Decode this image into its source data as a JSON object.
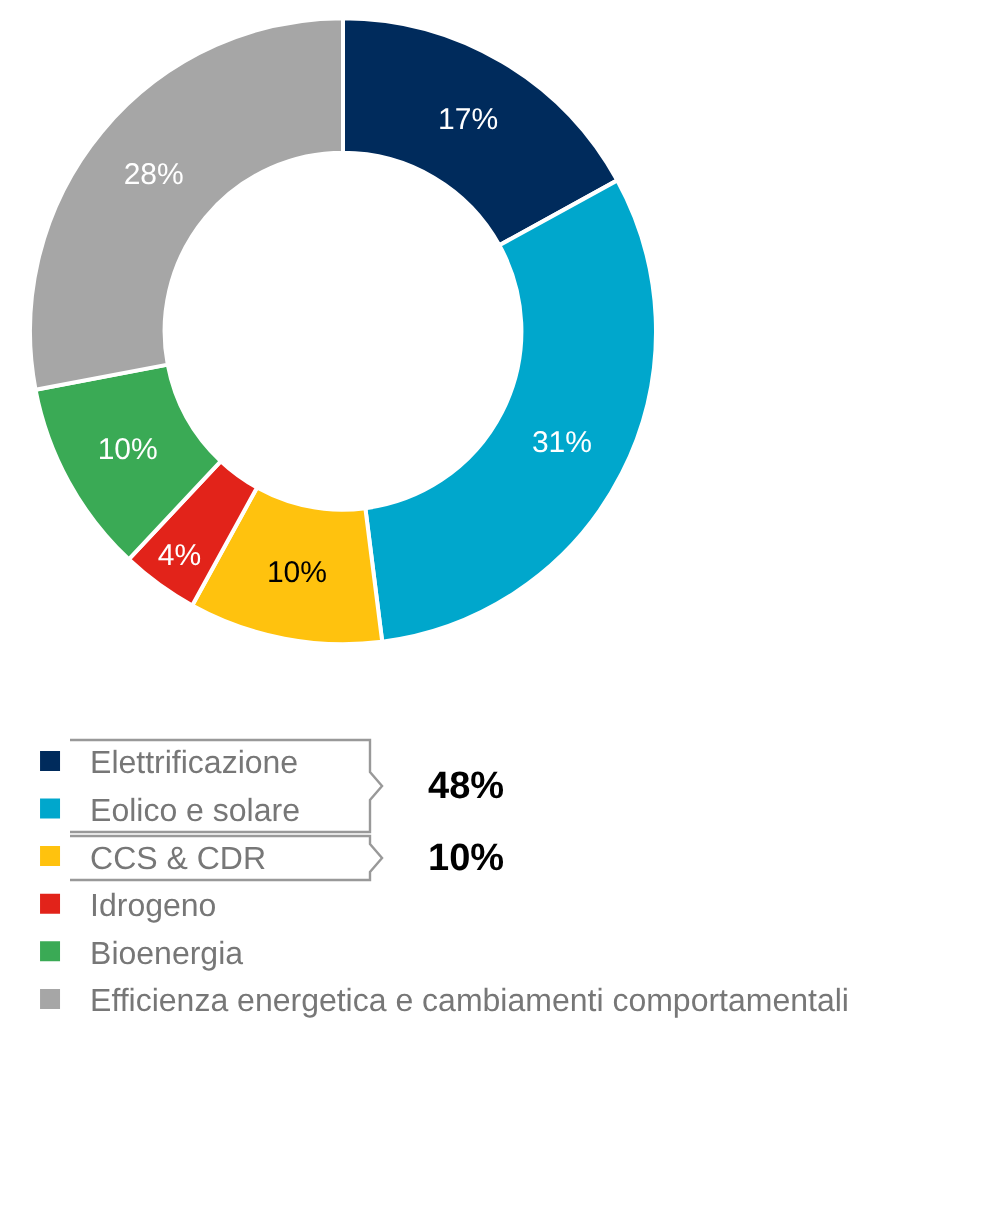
{
  "chart_data": {
    "type": "donut",
    "categories": [
      "Elettrificazione",
      "Eolico e solare",
      "CCS & CDR",
      "Idrogeno",
      "Bioenergia",
      "Efficienza energetica e cambiamenti comportamentali"
    ],
    "values": [
      17,
      31,
      10,
      4,
      10,
      28
    ],
    "colors": [
      "#002b5c",
      "#00a7cc",
      "#ffc20e",
      "#e2231a",
      "#3aaa55",
      "#a6a6a6"
    ],
    "value_labels": [
      "17%",
      "31%",
      "10%",
      "4%",
      "10%",
      "28%"
    ],
    "legend": "bottom",
    "annotations": [
      "48%",
      "10%"
    ]
  }
}
